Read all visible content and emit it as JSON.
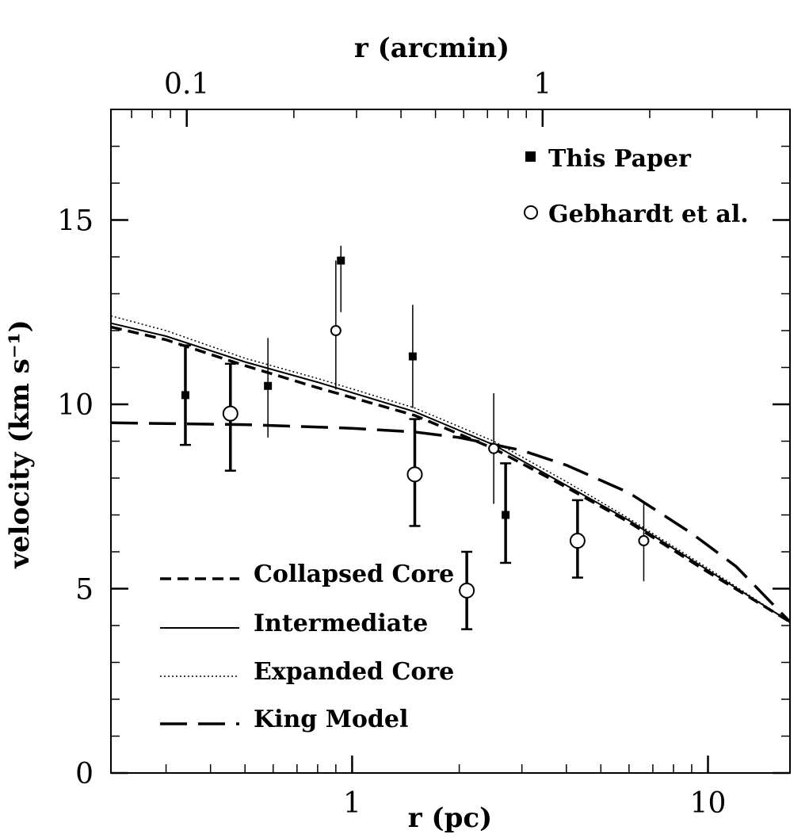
{
  "chart_data": {
    "type": "scatter",
    "xlabel": "r (pc)",
    "ylabel": "velocity (km s⁻¹)",
    "x2label": "r (arcmin)",
    "x_scale": "log",
    "xlim": [
      0.21,
      17
    ],
    "ylim": [
      0,
      18
    ],
    "x_ticks": [
      1,
      10
    ],
    "y_ticks": [
      0,
      5,
      10,
      15
    ],
    "x2_ticks": [
      {
        "label": "0.1",
        "pc": 0.343
      },
      {
        "label": "1",
        "pc": 3.43
      }
    ],
    "legend_points": [
      {
        "name": "This Paper",
        "marker": "square"
      },
      {
        "name": "Gebhardt et al.",
        "marker": "circle"
      }
    ],
    "legend_lines": [
      {
        "name": "Collapsed Core",
        "style": "short-dash"
      },
      {
        "name": "Intermediate",
        "style": "solid"
      },
      {
        "name": "Expanded Core",
        "style": "dotted"
      },
      {
        "name": "King Model",
        "style": "long-dash"
      }
    ],
    "series": [
      {
        "name": "This Paper",
        "marker": "square",
        "points": [
          {
            "x": 0.34,
            "y": 10.25,
            "lo": 8.9,
            "hi": 11.6,
            "bold": true
          },
          {
            "x": 0.58,
            "y": 10.5,
            "lo": 9.1,
            "hi": 11.8,
            "bold": false
          },
          {
            "x": 0.93,
            "y": 13.9,
            "lo": 12.5,
            "hi": 14.3,
            "bold": false
          },
          {
            "x": 1.48,
            "y": 11.3,
            "lo": 9.9,
            "hi": 12.7,
            "bold": false
          },
          {
            "x": 2.7,
            "y": 7.0,
            "lo": 5.7,
            "hi": 8.4,
            "bold": true
          }
        ]
      },
      {
        "name": "Gebhardt et al.",
        "marker": "circle",
        "points": [
          {
            "x": 0.455,
            "y": 9.75,
            "lo": 8.2,
            "hi": 11.1,
            "bold": true
          },
          {
            "x": 0.9,
            "y": 12.0,
            "lo": 10.4,
            "hi": 13.9,
            "bold": false
          },
          {
            "x": 1.5,
            "y": 8.1,
            "lo": 6.7,
            "hi": 9.6,
            "bold": true
          },
          {
            "x": 2.1,
            "y": 4.95,
            "lo": 3.9,
            "hi": 6.0,
            "bold": true
          },
          {
            "x": 2.5,
            "y": 8.8,
            "lo": 7.3,
            "hi": 10.3,
            "bold": false
          },
          {
            "x": 4.3,
            "y": 6.3,
            "lo": 5.3,
            "hi": 7.4,
            "bold": true
          },
          {
            "x": 6.6,
            "y": 6.3,
            "lo": 5.2,
            "hi": 7.3,
            "bold": false
          }
        ]
      },
      {
        "name": "Collapsed Core",
        "style": "short-dash",
        "x": [
          0.21,
          0.3,
          0.5,
          0.8,
          1.5,
          2.5,
          4,
          6,
          10,
          17
        ],
        "y": [
          12.1,
          11.75,
          11.05,
          10.45,
          9.7,
          8.8,
          7.75,
          6.8,
          5.45,
          4.1
        ]
      },
      {
        "name": "Intermediate",
        "style": "solid",
        "x": [
          0.21,
          0.3,
          0.5,
          0.8,
          1.5,
          2.5,
          4,
          6,
          10,
          17
        ],
        "y": [
          12.2,
          11.85,
          11.15,
          10.6,
          9.8,
          8.9,
          7.8,
          6.85,
          5.5,
          4.1
        ]
      },
      {
        "name": "Expanded Core",
        "style": "dotted",
        "x": [
          0.21,
          0.3,
          0.5,
          0.8,
          1.5,
          2.5,
          4,
          6,
          10,
          17
        ],
        "y": [
          12.4,
          12.0,
          11.25,
          10.7,
          9.9,
          9.0,
          7.9,
          6.9,
          5.55,
          4.1
        ]
      },
      {
        "name": "King Model",
        "style": "long-dash",
        "x": [
          0.21,
          0.5,
          1.0,
          1.5,
          2.0,
          3.0,
          4.0,
          6.0,
          9.0,
          12.0,
          17.0
        ],
        "y": [
          9.5,
          9.45,
          9.35,
          9.25,
          9.1,
          8.75,
          8.35,
          7.6,
          6.5,
          5.6,
          4.1
        ]
      }
    ]
  }
}
